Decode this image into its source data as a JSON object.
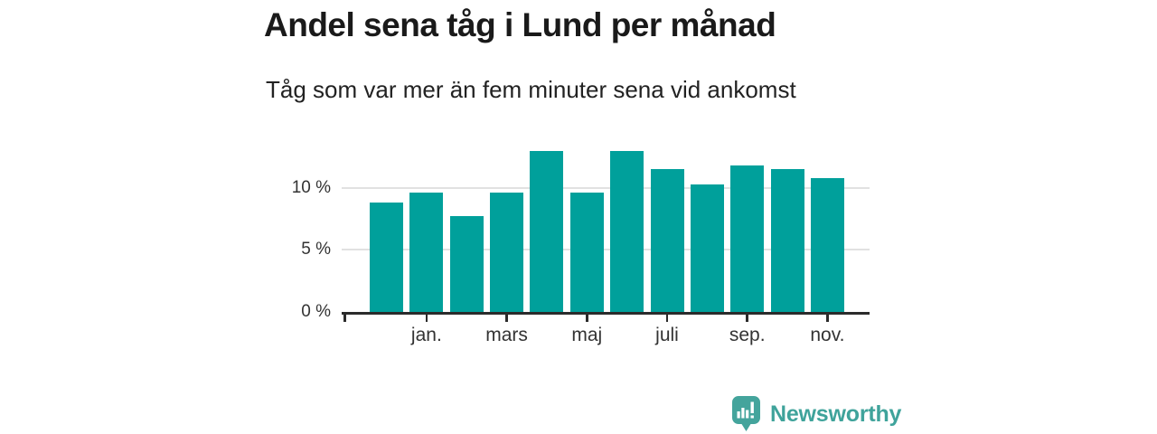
{
  "chart_data": {
    "type": "bar",
    "title": "Andel sena tåg i Lund per månad",
    "subtitle": "Tåg som var mer än fem minuter sena vid ankomst",
    "unit": "%",
    "values": [
      8.8,
      9.6,
      7.7,
      9.6,
      13.0,
      9.6,
      13.0,
      11.5,
      10.3,
      11.8,
      11.5,
      10.8
    ],
    "n_bars": 12,
    "x_tick_labels": [
      "jan.",
      "mars",
      "maj",
      "juli",
      "sep.",
      "nov."
    ],
    "x_tick_bar_indices": [
      1,
      3,
      5,
      7,
      9,
      11
    ],
    "y_tick_labels": [
      "0 %",
      "5 %",
      "10 %"
    ],
    "y_tick_values": [
      0,
      5,
      10
    ],
    "ylim": [
      0,
      13.5
    ],
    "grid": true,
    "legend_position": "none",
    "bar_color": "#00a09b"
  },
  "branding": {
    "name": "Newsworthy",
    "logo_icon": "newsworthy-bubble-barchart-icon",
    "color": "#3fa39b"
  },
  "colors": {
    "bar": "#00a09b",
    "axis": "#2b2b2b",
    "grid": "#e1e1e1",
    "title_text": "#1a1a1a",
    "label_text": "#333333",
    "brand": "#3fa39b"
  }
}
